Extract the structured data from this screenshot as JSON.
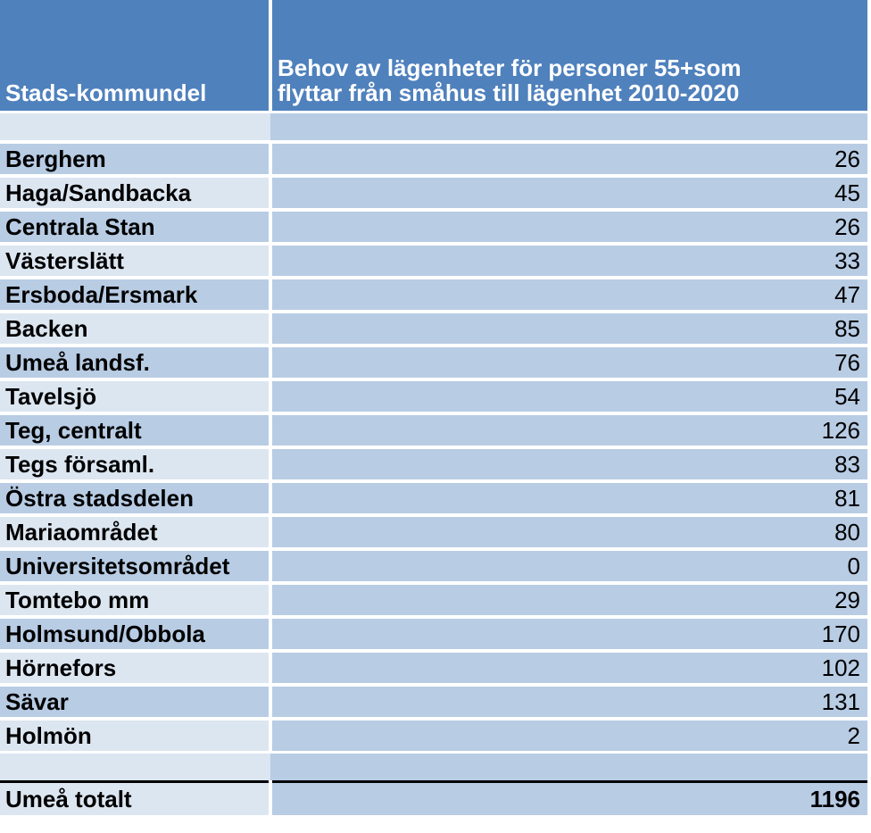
{
  "header": {
    "col1": "Stads-kommundel",
    "col2_line1": "Behov av lägenheter för personer 55+som",
    "col2_line2": "flyttar från småhus till lägenhet 2010-2020"
  },
  "rows": [
    {
      "name": "Berghem",
      "value": "26"
    },
    {
      "name": "Haga/Sandbacka",
      "value": "45"
    },
    {
      "name": "Centrala Stan",
      "value": "26"
    },
    {
      "name": "Västerslätt",
      "value": "33"
    },
    {
      "name": "Ersboda/Ersmark",
      "value": "47"
    },
    {
      "name": "Backen",
      "value": "85"
    },
    {
      "name": "Umeå landsf.",
      "value": "76"
    },
    {
      "name": "Tavelsjö",
      "value": "54"
    },
    {
      "name": "Teg, centralt",
      "value": "126"
    },
    {
      "name": "Tegs församl.",
      "value": "83"
    },
    {
      "name": "Östra stadsdelen",
      "value": "81"
    },
    {
      "name": "Mariaområdet",
      "value": "80"
    },
    {
      "name": "Universitetsområdet",
      "value": "0"
    },
    {
      "name": "Tomtebo mm",
      "value": "29"
    },
    {
      "name": "Holmsund/Obbola",
      "value": "170"
    },
    {
      "name": "Hörnefors",
      "value": "102"
    },
    {
      "name": "Sävar",
      "value": "131"
    },
    {
      "name": "Holmön",
      "value": "2"
    }
  ],
  "total": {
    "name": "Umeå totalt",
    "value": "1196"
  },
  "colors": {
    "header": "#4f81bd",
    "light": "#dce6f1",
    "mid": "#b8cce4"
  }
}
